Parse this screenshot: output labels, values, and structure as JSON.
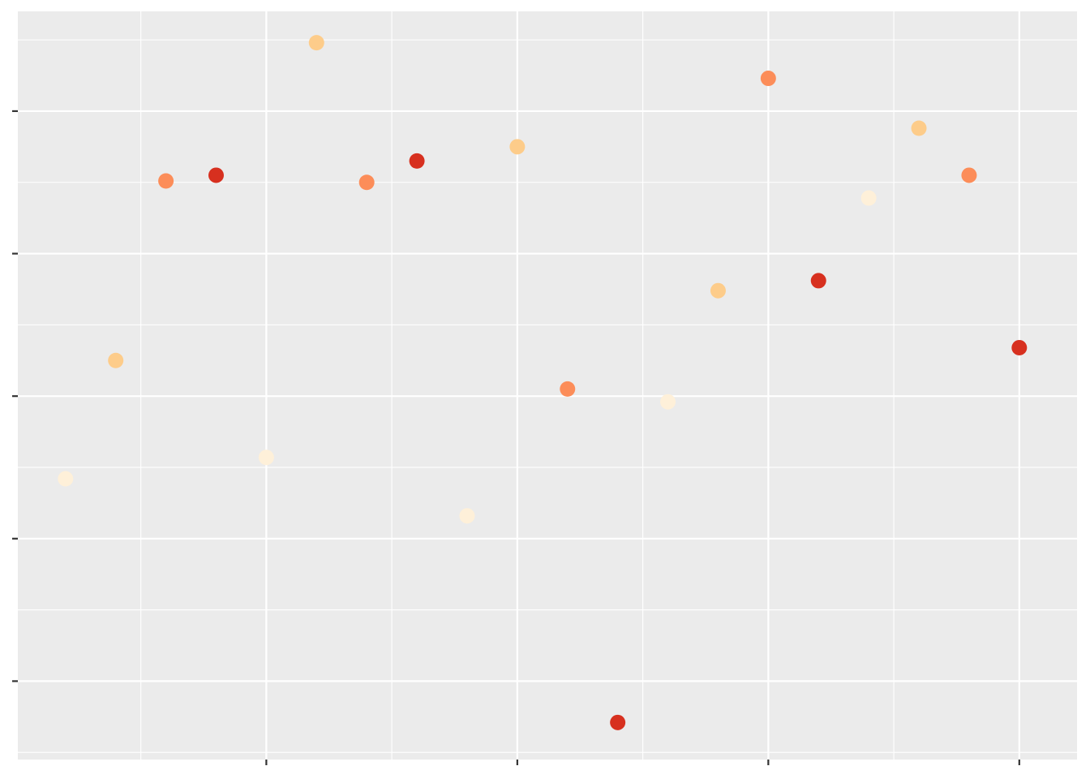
{
  "chart_data": {
    "type": "scatter",
    "title": "",
    "xlabel": "",
    "ylabel": "",
    "xlim": [
      0.05,
      21.15
    ],
    "ylim": [
      -2.55,
      2.7
    ],
    "x_major_ticks": [
      5,
      10,
      15,
      20
    ],
    "y_major_ticks": [
      -2,
      -1,
      0,
      1,
      2
    ],
    "tick_labels_shown": false,
    "grid": true,
    "legend": "none",
    "palette": [
      "#FEF0D9",
      "#FDCC8A",
      "#FC8D59",
      "#D7301F"
    ],
    "points": [
      {
        "x": 1,
        "y": -0.58,
        "group": 1
      },
      {
        "x": 2,
        "y": 0.25,
        "group": 2
      },
      {
        "x": 3,
        "y": 1.51,
        "group": 3
      },
      {
        "x": 4,
        "y": 1.55,
        "group": 4
      },
      {
        "x": 5,
        "y": -0.43,
        "group": 1
      },
      {
        "x": 6,
        "y": 2.48,
        "group": 2
      },
      {
        "x": 7,
        "y": 1.5,
        "group": 3
      },
      {
        "x": 8,
        "y": 1.65,
        "group": 4
      },
      {
        "x": 9,
        "y": -0.84,
        "group": 1
      },
      {
        "x": 10,
        "y": 1.75,
        "group": 2
      },
      {
        "x": 11,
        "y": 0.05,
        "group": 3
      },
      {
        "x": 12,
        "y": -2.29,
        "group": 4
      },
      {
        "x": 13,
        "y": -0.04,
        "group": 1
      },
      {
        "x": 14,
        "y": 0.74,
        "group": 2
      },
      {
        "x": 15,
        "y": 2.23,
        "group": 3
      },
      {
        "x": 16,
        "y": 0.81,
        "group": 4
      },
      {
        "x": 17,
        "y": 1.39,
        "group": 1
      },
      {
        "x": 18,
        "y": 1.88,
        "group": 2
      },
      {
        "x": 19,
        "y": 1.55,
        "group": 3
      },
      {
        "x": 20,
        "y": 0.34,
        "group": 4
      }
    ]
  }
}
